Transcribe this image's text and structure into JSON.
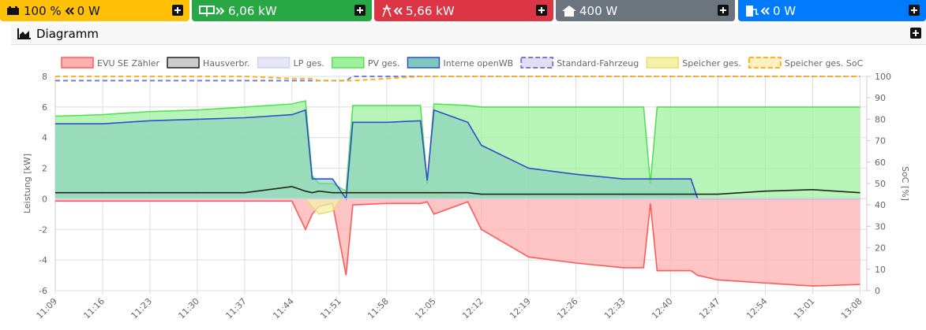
{
  "status_bar": [
    [
      "100 %",
      "0 W"
    ],
    [
      "6,06 kW"
    ],
    [
      "5,66 kW"
    ],
    [
      "400 W"
    ],
    [
      "0 W"
    ]
  ],
  "panel_title": "Diagramm",
  "chart_data": {
    "type": "line",
    "x": [
      "11:09",
      "11:16",
      "11:23",
      "11:30",
      "11:37",
      "11:44",
      "11:46",
      "11:47",
      "11:48",
      "11:50",
      "11:52",
      "11:53",
      "11:58",
      "12:03",
      "12:04",
      "12:05",
      "12:10",
      "12:12",
      "12:19",
      "12:26",
      "12:33",
      "12:36",
      "12:37",
      "12:38",
      "12:43",
      "12:44",
      "12:47",
      "12:54",
      "13:01",
      "13:08"
    ],
    "xlim": [
      "11:09",
      "13:09"
    ],
    "xticks": [
      "11:09",
      "11:16",
      "11:23",
      "11:30",
      "11:37",
      "11:44",
      "11:51",
      "11:58",
      "12:05",
      "12:12",
      "12:19",
      "12:26",
      "12:33",
      "12:40",
      "12:47",
      "12:54",
      "13:01",
      "13:08"
    ],
    "ylabel": "Leistung [kW]",
    "y2label": "SoC [%]",
    "ylim": [
      -6,
      8
    ],
    "yticks": [
      -6,
      -4,
      -2,
      0,
      2,
      4,
      6,
      8
    ],
    "y2lim": [
      0,
      100
    ],
    "y2ticks": [
      0,
      10,
      20,
      30,
      40,
      50,
      60,
      70,
      80,
      90,
      100
    ],
    "grid": true,
    "series": [
      {
        "name": "EVU SE Zähler",
        "color": "#ff5a5a",
        "fill_color": "#ffb0b0",
        "fill": true,
        "dash": false,
        "values": [
          -0.15,
          -0.15,
          -0.15,
          -0.15,
          -0.15,
          -0.15,
          -2.0,
          -1.0,
          -0.5,
          -0.3,
          -5.0,
          -0.4,
          -0.3,
          -0.3,
          -0.2,
          -1.0,
          -0.2,
          -2.0,
          -3.8,
          -4.2,
          -4.5,
          -4.5,
          -0.3,
          -4.7,
          -4.7,
          -5.0,
          -5.3,
          -5.5,
          -5.7,
          -5.6
        ]
      },
      {
        "name": "Hausverbr.",
        "color": "#222222",
        "fill_color": "#cccccc",
        "fill": false,
        "dash": false,
        "values": [
          0.4,
          0.4,
          0.4,
          0.4,
          0.4,
          0.8,
          0.5,
          0.4,
          0.5,
          0.4,
          0.4,
          0.4,
          0.4,
          0.4,
          0.4,
          0.4,
          0.4,
          0.3,
          0.3,
          0.3,
          0.3,
          0.3,
          0.3,
          0.3,
          0.3,
          0.3,
          0.3,
          0.5,
          0.6,
          0.4
        ]
      },
      {
        "name": "LP ges.",
        "color": "#d0d0f0",
        "fill_color": "#e6e6f8",
        "fill": true,
        "dash": false,
        "values": [
          0,
          0,
          0,
          0,
          0,
          0,
          0,
          0,
          0,
          0,
          0,
          0,
          0,
          0,
          0,
          0,
          0,
          0,
          0,
          0,
          0,
          0,
          0,
          0,
          0,
          0,
          0,
          0,
          0,
          0
        ]
      },
      {
        "name": "PV ges.",
        "color": "#55e055",
        "fill_color": "#9ff09f",
        "fill": true,
        "dash": false,
        "values": [
          5.4,
          5.5,
          5.7,
          5.8,
          6.0,
          6.2,
          6.4,
          1.5,
          1.0,
          1.0,
          0.5,
          6.1,
          6.1,
          6.1,
          1.0,
          6.2,
          6.1,
          6.0,
          6.0,
          6.0,
          6.0,
          6.0,
          1.0,
          6.0,
          6.0,
          6.0,
          6.0,
          6.0,
          6.0,
          6.0
        ]
      },
      {
        "name": "Interne openWB",
        "color": "#2f4fc8",
        "fill_color": "#7fc8c0",
        "fill": true,
        "dash": false,
        "values": [
          4.9,
          4.9,
          5.1,
          5.2,
          5.3,
          5.5,
          5.8,
          1.3,
          1.3,
          1.3,
          0,
          5.0,
          5.0,
          5.1,
          1.2,
          5.8,
          5.0,
          3.5,
          2.0,
          1.6,
          1.3,
          1.3,
          1.3,
          1.3,
          1.3,
          0,
          0,
          0,
          0,
          0
        ]
      },
      {
        "name": "Standard-Fahrzeug",
        "color": "#7b7bd6",
        "fill_color": "#e0e0f5",
        "fill": false,
        "dash": true,
        "axis": "y2",
        "values": [
          98,
          98,
          98,
          98,
          98,
          98,
          98,
          98,
          98,
          98,
          98,
          100,
          100,
          100,
          100,
          100,
          100,
          100,
          100,
          100,
          100,
          100,
          100,
          100,
          100,
          100,
          100,
          100,
          100,
          100
        ]
      },
      {
        "name": "Speicher ges.",
        "color": "#e6e070",
        "fill_color": "#f4f0a8",
        "fill": true,
        "dash": false,
        "values": [
          0,
          0,
          0,
          0,
          0,
          0,
          0,
          -0.5,
          -1.0,
          -0.8,
          0.5,
          0.6,
          0.6,
          0.6,
          0.5,
          0.3,
          0,
          0,
          0,
          0,
          0,
          0,
          0,
          0,
          0,
          0,
          0,
          0,
          0,
          0
        ]
      },
      {
        "name": "Speicher ges. SoC",
        "color": "#ffb020",
        "fill_color": "#fff0c0",
        "fill": false,
        "dash": true,
        "axis": "y2",
        "values": [
          100,
          100,
          100,
          100,
          100,
          99,
          99,
          99,
          98,
          98,
          98,
          98,
          99,
          100,
          100,
          100,
          100,
          100,
          100,
          100,
          100,
          100,
          100,
          100,
          100,
          100,
          100,
          100,
          100,
          100
        ]
      }
    ]
  }
}
